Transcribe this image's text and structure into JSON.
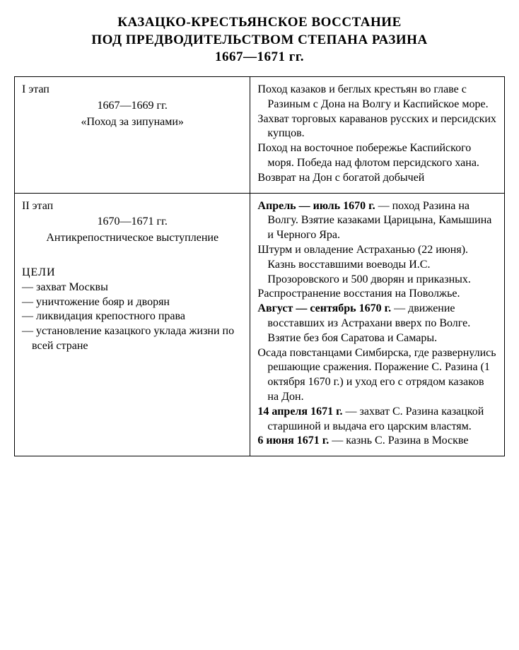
{
  "title_line1": "КАЗАЦКО-КРЕСТЬЯНСКОЕ ВОССТАНИЕ",
  "title_line2": "ПОД ПРЕДВОДИТЕЛЬСТВОМ СТЕПАНА РАЗИНА",
  "title_line3": "1667—1671 гг.",
  "stage1": {
    "label": "I этап",
    "dates": "1667—1669 гг.",
    "subtitle": "«Поход за зипунами»",
    "events": [
      "Поход казаков и беглых крестьян во главе с Разиным с Дона на Волгу и Каспийское море.",
      "Захват торговых караванов русских и персидских купцов.",
      "Поход на восточное побережье Каспийского моря. Победа над флотом персидского хана.",
      "Возврат на Дон с богатой добычей"
    ]
  },
  "stage2": {
    "label": "II этап",
    "dates": "1670—1671 гг.",
    "subtitle": "Антикрепостническое выступление",
    "goals_heading": "ЦЕЛИ",
    "goals": [
      "— захват Москвы",
      "— уничтожение бояр и дворян",
      "— ликвидация крепостного права",
      "— установление казацкого уклада жизни по всей стране"
    ],
    "events": {
      "e1_bold": "Апрель — июль 1670 г.",
      "e1_rest": " — поход Разина на Волгу. Взятие казаками Царицына, Камышина и Черного Яра.",
      "e2": "Штурм и овладение Астраханью (22 июня). Казнь восставшими воеводы И.С. Прозоровского и 500 дворян и приказных.",
      "e3": "Распространение восстания на Поволжье.",
      "e4_bold": "Август — сентябрь 1670 г.",
      "e4_rest": " — движение восставших из Астрахани вверх по Волге. Взятие без боя Саратова и Самары.",
      "e5": "Осада повстанцами Симбирска, где развернулись решающие сражения. Поражение С. Разина (1 октября 1670 г.) и уход его с отрядом казаков на Дон.",
      "e6_bold": "14 апреля 1671 г.",
      "e6_rest": " — захват С. Разина казацкой старшиной и выдача его царским властям.",
      "e7_bold": "6 июня 1671 г.",
      "e7_rest": " — казнь С. Разина в Москве"
    }
  }
}
